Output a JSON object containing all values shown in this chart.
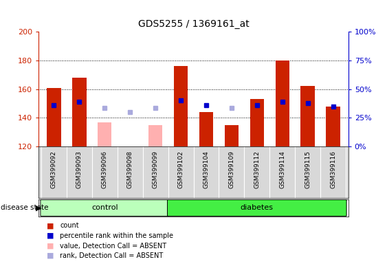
{
  "title": "GDS5255 / 1369161_at",
  "samples": [
    "GSM399092",
    "GSM399093",
    "GSM399096",
    "GSM399098",
    "GSM399099",
    "GSM399102",
    "GSM399104",
    "GSM399109",
    "GSM399112",
    "GSM399114",
    "GSM399115",
    "GSM399116"
  ],
  "groups": [
    "control",
    "control",
    "control",
    "control",
    "control",
    "diabetes",
    "diabetes",
    "diabetes",
    "diabetes",
    "diabetes",
    "diabetes",
    "diabetes"
  ],
  "red_bars": [
    161,
    168,
    null,
    120,
    null,
    176,
    144,
    135,
    153,
    180,
    162,
    148
  ],
  "pink_bars": [
    null,
    null,
    137,
    null,
    135,
    null,
    null,
    null,
    null,
    null,
    null,
    null
  ],
  "blue_squares": [
    149,
    151,
    null,
    null,
    null,
    152,
    149,
    null,
    149,
    151,
    150,
    148
  ],
  "lavender_squares": [
    null,
    null,
    147,
    144,
    147,
    null,
    null,
    147,
    null,
    null,
    null,
    null
  ],
  "ymin": 120,
  "ymax": 200,
  "yticks_left": [
    120,
    140,
    160,
    180,
    200
  ],
  "yticks_right": [
    0,
    25,
    50,
    75,
    100
  ],
  "bar_color_red": "#cc2200",
  "bar_color_pink": "#ffb0b0",
  "square_color_blue": "#0000cc",
  "square_color_lavender": "#aaaadd",
  "control_color": "#bbffbb",
  "diabetes_color": "#44ee44",
  "legend": [
    {
      "label": "count",
      "color": "#cc2200"
    },
    {
      "label": "percentile rank within the sample",
      "color": "#0000cc"
    },
    {
      "label": "value, Detection Call = ABSENT",
      "color": "#ffb0b0"
    },
    {
      "label": "rank, Detection Call = ABSENT",
      "color": "#aaaadd"
    }
  ],
  "disease_state_label": "disease state",
  "sample_bg_color": "#d8d8d8",
  "plot_bg_color": "#ffffff"
}
